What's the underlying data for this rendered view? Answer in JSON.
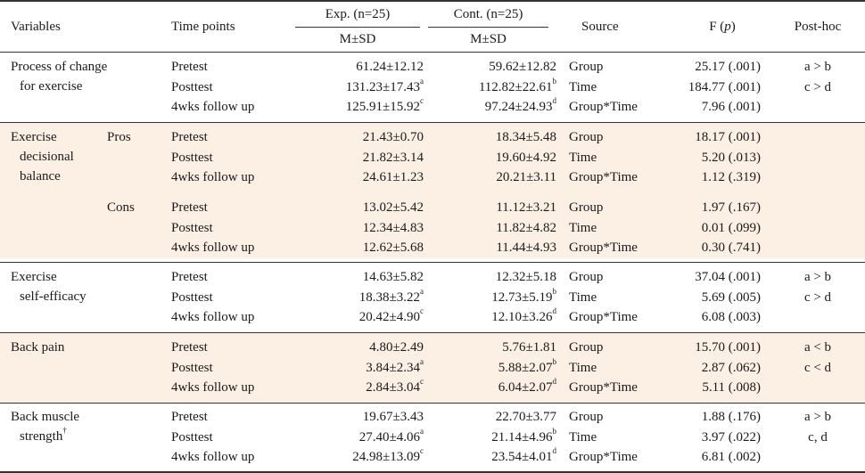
{
  "header": {
    "variables": "Variables",
    "time_points": "Time points",
    "exp": "Exp. (n=25)",
    "cont": "Cont. (n=25)",
    "msd": "M±SD",
    "source": "Source",
    "f_label": "F (",
    "f_p": "p",
    "f_close": ")",
    "posthoc": "Post-hoc"
  },
  "groups": [
    {
      "name_lines": [
        "Process of change",
        "for exercise"
      ],
      "sub": "",
      "rows": [
        {
          "time": "Pretest",
          "exp": "61.24±12.12",
          "exp_sup": "",
          "cont": "59.62±12.82",
          "cont_sup": "",
          "source": "Group",
          "f": "25.17 (.001)",
          "posthoc": "a > b"
        },
        {
          "time": "Posttest",
          "exp": "131.23±17.43",
          "exp_sup": "a",
          "cont": "112.82±22.61",
          "cont_sup": "b",
          "source": "Time",
          "f": "184.77 (.001)",
          "posthoc": "c > d"
        },
        {
          "time": "4wks follow up",
          "exp": "125.91±15.92",
          "exp_sup": "c",
          "cont": "97.24±24.93",
          "cont_sup": "d",
          "source": "Group*Time",
          "f": "7.96 (.001)",
          "posthoc": ""
        }
      ]
    },
    {
      "name_lines": [
        "Exercise",
        "decisional",
        "balance"
      ],
      "sub": "Pros",
      "rows": [
        {
          "time": "Pretest",
          "exp": "21.43±0.70",
          "exp_sup": "",
          "cont": "18.34±5.48",
          "cont_sup": "",
          "source": "Group",
          "f": "18.17 (.001)",
          "posthoc": ""
        },
        {
          "time": "Posttest",
          "exp": "21.82±3.14",
          "exp_sup": "",
          "cont": "19.60±4.92",
          "cont_sup": "",
          "source": "Time",
          "f": "5.20 (.013)",
          "posthoc": ""
        },
        {
          "time": "4wks follow up",
          "exp": "24.61±1.23",
          "exp_sup": "",
          "cont": "20.21±3.11",
          "cont_sup": "",
          "source": "Group*Time",
          "f": "1.12 (.319)",
          "posthoc": ""
        }
      ]
    },
    {
      "name_lines": [],
      "sub": "Cons",
      "rows": [
        {
          "time": "Pretest",
          "exp": "13.02±5.42",
          "exp_sup": "",
          "cont": "11.12±3.21",
          "cont_sup": "",
          "source": "Group",
          "f": "1.97 (.167)",
          "posthoc": ""
        },
        {
          "time": "Posttest",
          "exp": "12.34±4.83",
          "exp_sup": "",
          "cont": "11.82±4.82",
          "cont_sup": "",
          "source": "Time",
          "f": "0.01 (.099)",
          "posthoc": ""
        },
        {
          "time": "4wks follow up",
          "exp": "12.62±5.68",
          "exp_sup": "",
          "cont": "11.44±4.93",
          "cont_sup": "",
          "source": "Group*Time",
          "f": "0.30 (.741)",
          "posthoc": ""
        }
      ]
    },
    {
      "name_lines": [
        "Exercise",
        "self-efficacy"
      ],
      "sub": "",
      "rows": [
        {
          "time": "Pretest",
          "exp": "14.63±5.82",
          "exp_sup": "",
          "cont": "12.32±5.18",
          "cont_sup": "",
          "source": "Group",
          "f": "37.04 (.001)",
          "posthoc": "a > b"
        },
        {
          "time": "Posttest",
          "exp": "18.38±3.22",
          "exp_sup": "a",
          "cont": "12.73±5.19",
          "cont_sup": "b",
          "source": "Time",
          "f": "5.69 (.005)",
          "posthoc": "c > d"
        },
        {
          "time": "4wks follow up",
          "exp": "20.42±4.90",
          "exp_sup": "c",
          "cont": "12.10±3.26",
          "cont_sup": "d",
          "source": "Group*Time",
          "f": "6.08 (.003)",
          "posthoc": ""
        }
      ]
    },
    {
      "name_lines": [
        "Back pain"
      ],
      "sub": "",
      "rows": [
        {
          "time": "Pretest",
          "exp": "4.80±2.49",
          "exp_sup": "",
          "cont": "5.76±1.81",
          "cont_sup": "",
          "source": "Group",
          "f": "15.70 (.001)",
          "posthoc": "a < b"
        },
        {
          "time": "Posttest",
          "exp": "3.84±2.34",
          "exp_sup": "a",
          "cont": "5.88±2.07",
          "cont_sup": "b",
          "source": "Time",
          "f": "2.87 (.062)",
          "posthoc": "c < d"
        },
        {
          "time": "4wks follow up",
          "exp": "2.84±3.04",
          "exp_sup": "c",
          "cont": "6.04±2.07",
          "cont_sup": "d",
          "source": "Group*Time",
          "f": "5.11 (.008)",
          "posthoc": ""
        }
      ]
    },
    {
      "name_lines": [
        "Back muscle",
        "strength"
      ],
      "name_sup": "†",
      "sub": "",
      "rows": [
        {
          "time": "Pretest",
          "exp": "19.67±3.43",
          "exp_sup": "",
          "cont": "22.70±3.77",
          "cont_sup": "",
          "source": "Group",
          "f": "1.88 (.176)",
          "posthoc": "a > b"
        },
        {
          "time": "Posttest",
          "exp": "27.40±4.06",
          "exp_sup": "a",
          "cont": "21.14±4.96",
          "cont_sup": "b",
          "source": "Time",
          "f": "3.97 (.022)",
          "posthoc": "c,  d"
        },
        {
          "time": "4wks follow up",
          "exp": "24.98±13.09",
          "exp_sup": "c",
          "cont": "23.54±4.01",
          "cont_sup": "d",
          "source": "Group*Time",
          "f": "6.81 (.002)",
          "posthoc": ""
        }
      ]
    }
  ]
}
